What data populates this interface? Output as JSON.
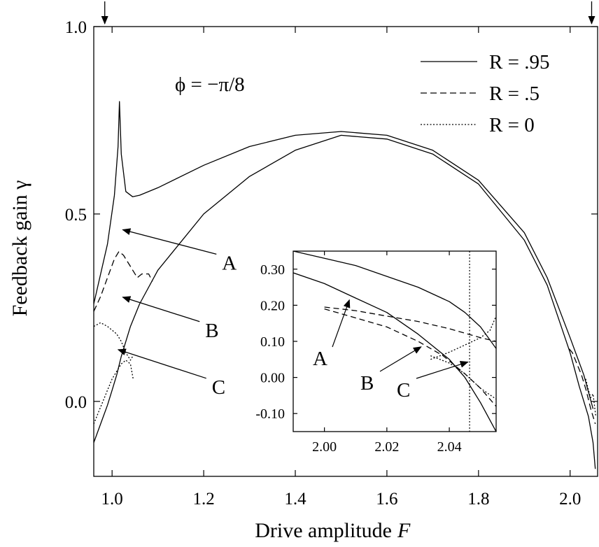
{
  "chart_data": [
    {
      "type": "line",
      "xlabel": "Drive amplitude",
      "xlabel_var": "F",
      "ylabel": "Feedback gain γ",
      "xlim": [
        0.96,
        2.06
      ],
      "ylim": [
        -0.2,
        1.0
      ],
      "xticks": [
        1.0,
        1.2,
        1.4,
        1.6,
        1.8,
        2.0
      ],
      "xtick_labels": [
        "1.0",
        "1.2",
        "1.4",
        "1.6",
        "1.8",
        "2.0"
      ],
      "yticks": [
        0.0,
        0.5,
        1.0
      ],
      "ytick_labels": [
        "0.0",
        "0.5",
        "1.0"
      ],
      "grid": false,
      "legend_position": "top-right",
      "annotation": "ϕ = −π/8",
      "top_arrow_x": [
        0.984,
        2.047
      ],
      "point_labels": [
        {
          "text": "A",
          "at": [
            1.02,
            0.46
          ]
        },
        {
          "text": "B",
          "at": [
            1.02,
            0.28
          ]
        },
        {
          "text": "C",
          "at": [
            1.01,
            0.14
          ]
        }
      ],
      "series": [
        {
          "name": "R = .95",
          "style": "solid",
          "color": "#000000",
          "x": [
            0.96,
            0.99,
            1.005,
            1.013,
            1.016,
            1.02,
            1.03,
            1.045,
            1.06,
            1.1,
            1.2,
            1.3,
            1.4,
            1.5,
            1.6,
            1.7,
            1.8,
            1.9,
            1.95,
            2.0,
            2.03,
            2.05
          ],
          "y": [
            0.26,
            0.42,
            0.55,
            0.68,
            0.8,
            0.66,
            0.56,
            0.546,
            0.55,
            0.57,
            0.63,
            0.68,
            0.71,
            0.72,
            0.71,
            0.67,
            0.59,
            0.45,
            0.33,
            0.17,
            0.07,
            -0.02
          ]
        },
        {
          "name": "R = .5",
          "style": "dashed",
          "color": "#000000",
          "x": [
            0.96,
            0.975,
            0.99,
            1.005,
            1.015,
            1.025,
            1.04,
            1.055,
            1.065,
            1.08,
            1.088
          ],
          "y": [
            0.24,
            0.28,
            0.33,
            0.38,
            0.4,
            0.39,
            0.36,
            0.33,
            0.34,
            0.34,
            0.32
          ]
        },
        {
          "name": "R = 0",
          "style": "dotted",
          "color": "#000000",
          "x": [
            0.96,
            0.975,
            0.99,
            1.0,
            1.01,
            1.02,
            1.03,
            1.04,
            1.045
          ],
          "y": [
            0.2,
            0.21,
            0.2,
            0.19,
            0.18,
            0.16,
            0.13,
            0.11,
            0.12
          ]
        },
        {
          "name": "",
          "style": "solid",
          "color": "#000000",
          "x": [
            0.96,
            0.975,
            0.99,
            1.0,
            1.01,
            1.02,
            1.04,
            1.06,
            1.1,
            1.2,
            1.3,
            1.4,
            1.5,
            1.6,
            1.7,
            1.8,
            1.9,
            1.95,
            2.0,
            2.02,
            2.04,
            2.05,
            2.055
          ],
          "y": [
            -0.11,
            -0.06,
            -0.01,
            0.03,
            0.07,
            0.12,
            0.2,
            0.26,
            0.35,
            0.5,
            0.6,
            0.67,
            0.71,
            0.7,
            0.66,
            0.58,
            0.43,
            0.31,
            0.13,
            0.04,
            -0.04,
            -0.11,
            -0.18
          ]
        },
        {
          "name": "",
          "style": "dashed",
          "color": "#000000",
          "x": [
            1.998,
            2.005,
            2.015,
            2.025,
            2.035,
            2.045,
            2.055
          ],
          "y": [
            0.14,
            0.13,
            0.1,
            0.07,
            0.03,
            -0.02,
            -0.06
          ]
        },
        {
          "name": "",
          "style": "dotted",
          "color": "#000000",
          "x": [
            0.96,
            0.97,
            0.98,
            0.99,
            1.0,
            1.01,
            1.02,
            1.03,
            1.04,
            1.046
          ],
          "y": [
            -0.06,
            -0.03,
            0.0,
            0.03,
            0.06,
            0.08,
            0.1,
            0.11,
            0.1,
            0.06
          ]
        },
        {
          "name": "",
          "style": "dotted",
          "color": "#000000",
          "x": [
            2.034,
            2.04,
            2.045,
            2.05,
            2.056
          ],
          "y": [
            0.06,
            0.03,
            0.01,
            0.02,
            -0.04
          ]
        }
      ]
    },
    {
      "type": "line",
      "inset": true,
      "xlim": [
        1.99,
        2.055
      ],
      "ylim": [
        -0.15,
        0.35
      ],
      "xticks": [
        2.0,
        2.02,
        2.04
      ],
      "xtick_labels": [
        "2.00",
        "2.02",
        "2.04"
      ],
      "yticks": [
        0.3,
        0.2,
        0.1,
        0.0,
        -0.1
      ],
      "ytick_labels": [
        "0.30",
        "0.20",
        "0.10",
        "0.00",
        "-0.10"
      ],
      "vline_x": 2.0465,
      "point_labels": [
        {
          "text": "A",
          "at": [
            2.008,
            0.215
          ]
        },
        {
          "text": "B",
          "at": [
            2.031,
            0.085
          ]
        },
        {
          "text": "C",
          "at": [
            2.046,
            0.043
          ]
        }
      ],
      "series": [
        {
          "name": "",
          "style": "solid",
          "color": "#000000",
          "x": [
            1.99,
            2.0,
            2.01,
            2.02,
            2.03,
            2.04,
            2.045,
            2.05,
            2.055
          ],
          "y": [
            0.35,
            0.33,
            0.31,
            0.28,
            0.25,
            0.21,
            0.18,
            0.14,
            0.08
          ]
        },
        {
          "name": "",
          "style": "solid",
          "color": "#000000",
          "x": [
            1.99,
            2.0,
            2.01,
            2.02,
            2.03,
            2.04,
            2.045,
            2.05,
            2.055
          ],
          "y": [
            0.29,
            0.26,
            0.22,
            0.18,
            0.12,
            0.05,
            0.0,
            -0.07,
            -0.15
          ]
        },
        {
          "name": "",
          "style": "dashed",
          "color": "#000000",
          "x": [
            2.0,
            2.01,
            2.02,
            2.03,
            2.04,
            2.05,
            2.055
          ],
          "y": [
            0.195,
            0.185,
            0.17,
            0.155,
            0.135,
            0.11,
            0.1
          ]
        },
        {
          "name": "",
          "style": "dashed",
          "color": "#000000",
          "x": [
            2.0,
            2.01,
            2.02,
            2.03,
            2.038,
            2.045,
            2.05,
            2.055
          ],
          "y": [
            0.19,
            0.165,
            0.14,
            0.1,
            0.06,
            0.01,
            -0.03,
            -0.08
          ]
        },
        {
          "name": "",
          "style": "dotted",
          "color": "#000000",
          "x": [
            2.034,
            2.04,
            2.045,
            2.05,
            2.053,
            2.055
          ],
          "y": [
            0.05,
            0.07,
            0.09,
            0.11,
            0.13,
            0.17
          ]
        },
        {
          "name": "",
          "style": "dotted",
          "color": "#000000",
          "x": [
            2.034,
            2.04,
            2.045,
            2.05,
            2.055
          ],
          "y": [
            0.06,
            0.04,
            0.01,
            -0.03,
            -0.06
          ]
        }
      ]
    }
  ]
}
